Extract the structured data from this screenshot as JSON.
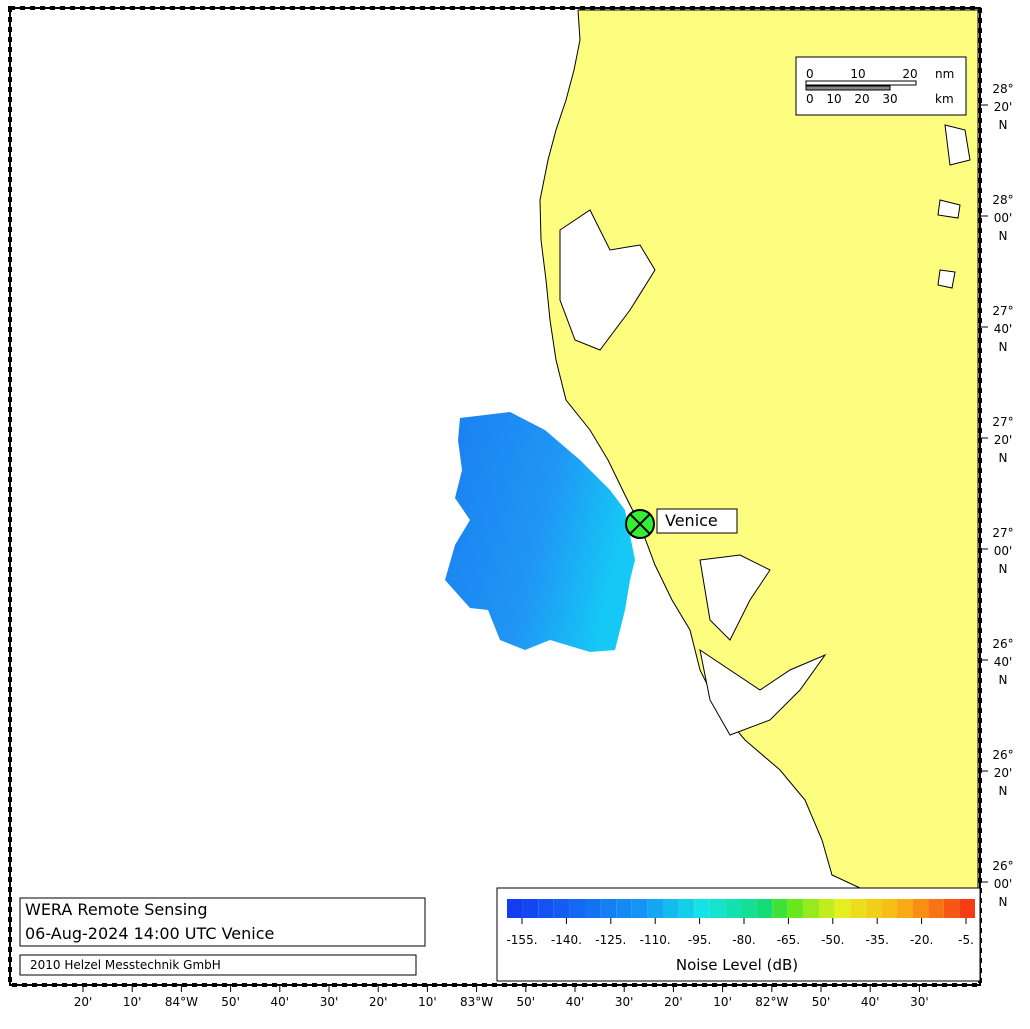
{
  "title": {
    "line1": "WERA Remote Sensing",
    "line2": "06-Aug-2024 14:00 UTC  Venice",
    "credit": "2010 Helzel Messtechnik GmbH"
  },
  "station": {
    "name": "Venice"
  },
  "scale_bar": {
    "nm_ticks": [
      "0",
      "10",
      "20"
    ],
    "nm_unit": "nm",
    "km_ticks": [
      "0",
      "10",
      "20",
      "30"
    ],
    "km_unit": "km"
  },
  "colorbar": {
    "title": "Noise Level (dB)",
    "ticks": [
      "-155.",
      "-140.",
      "-125.",
      "-110.",
      "-95.",
      "-80.",
      "-65.",
      "-50.",
      "-35.",
      "-20.",
      "-5."
    ]
  },
  "lat_labels": [
    {
      "deg": "28°",
      "min": "20'",
      "hem": "N"
    },
    {
      "deg": "28°",
      "min": "00'",
      "hem": "N"
    },
    {
      "deg": "27°",
      "min": "40'",
      "hem": "N"
    },
    {
      "deg": "27°",
      "min": "20'",
      "hem": "N"
    },
    {
      "deg": "27°",
      "min": "00'",
      "hem": "N"
    },
    {
      "deg": "26°",
      "min": "40'",
      "hem": "N"
    },
    {
      "deg": "26°",
      "min": "20'",
      "hem": "N"
    },
    {
      "deg": "26°",
      "min": "00'",
      "hem": "N"
    }
  ],
  "lon_labels": [
    "20'",
    "10'",
    "84°W",
    "50'",
    "40'",
    "30'",
    "20'",
    "10'",
    "83°W",
    "50'",
    "40'",
    "30'",
    "20'",
    "10'",
    "82°W",
    "50'",
    "40'",
    "30'"
  ]
}
